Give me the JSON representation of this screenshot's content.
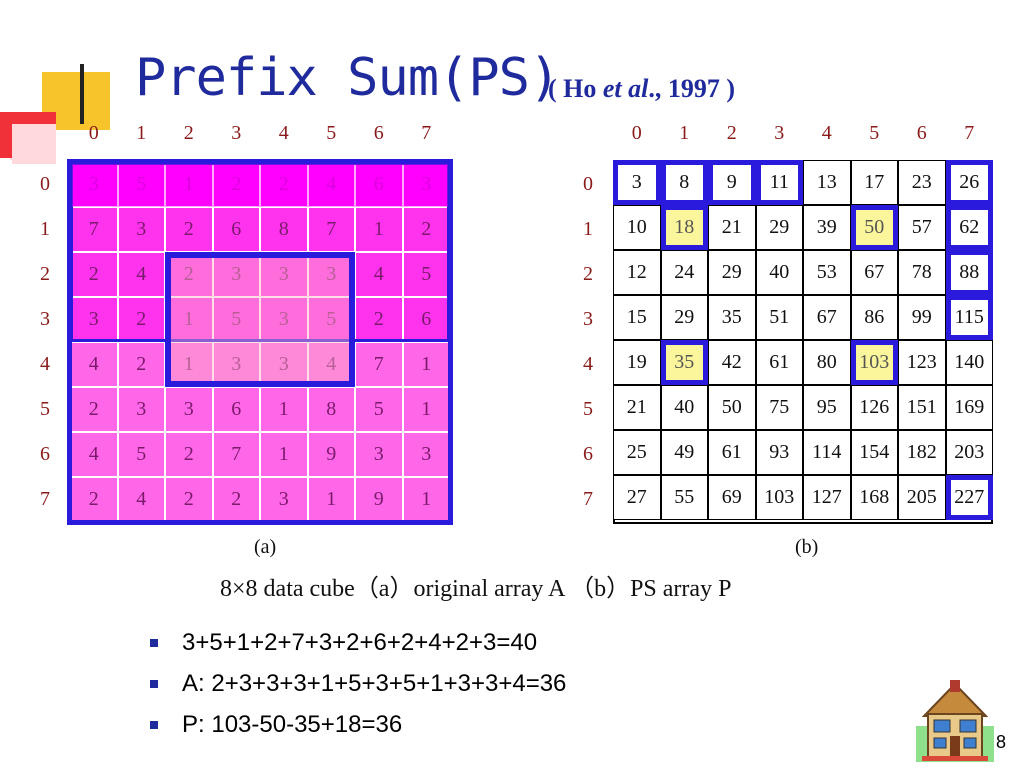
{
  "title": {
    "main": "Prefix Sum(PS)",
    "ref_pre": "( Ho ",
    "ref_italic": "et al",
    "ref_post": "., 1997 )"
  },
  "axis": [
    "0",
    "1",
    "2",
    "3",
    "4",
    "5",
    "6",
    "7"
  ],
  "array_a": [
    [
      "3",
      "5",
      "1",
      "2",
      "2",
      "4",
      "6",
      "3"
    ],
    [
      "7",
      "3",
      "2",
      "6",
      "8",
      "7",
      "1",
      "2"
    ],
    [
      "2",
      "4",
      "2",
      "3",
      "3",
      "3",
      "4",
      "5"
    ],
    [
      "3",
      "2",
      "1",
      "5",
      "3",
      "5",
      "2",
      "6"
    ],
    [
      "4",
      "2",
      "1",
      "3",
      "3",
      "4",
      "7",
      "1"
    ],
    [
      "2",
      "3",
      "3",
      "6",
      "1",
      "8",
      "5",
      "1"
    ],
    [
      "4",
      "5",
      "2",
      "7",
      "1",
      "9",
      "3",
      "3"
    ],
    [
      "2",
      "4",
      "2",
      "2",
      "3",
      "1",
      "9",
      "1"
    ]
  ],
  "array_p": [
    [
      "3",
      "8",
      "9",
      "11",
      "13",
      "17",
      "23",
      "26"
    ],
    [
      "10",
      "18",
      "21",
      "29",
      "39",
      "50",
      "57",
      "62"
    ],
    [
      "12",
      "24",
      "29",
      "40",
      "53",
      "67",
      "78",
      "88"
    ],
    [
      "15",
      "29",
      "35",
      "51",
      "67",
      "86",
      "99",
      "115"
    ],
    [
      "19",
      "35",
      "42",
      "61",
      "80",
      "103",
      "123",
      "140"
    ],
    [
      "21",
      "40",
      "50",
      "75",
      "95",
      "126",
      "151",
      "169"
    ],
    [
      "25",
      "49",
      "61",
      "93",
      "114",
      "154",
      "182",
      "203"
    ],
    [
      "27",
      "55",
      "69",
      "103",
      "127",
      "168",
      "205",
      "227"
    ]
  ],
  "highlight_p": [
    "1,1",
    "1,5",
    "4,1",
    "4,5"
  ],
  "boxed_p": [
    "0,0",
    "0,1",
    "0,2",
    "0,3",
    "0,7",
    "1,7",
    "2,7",
    "3,7",
    "7,7",
    "1,1",
    "1,5",
    "4,1",
    "4,5"
  ],
  "colors": {
    "accent": "#2a1bdc",
    "dark_magenta": "#ff00ff",
    "mid_magenta": "#ff33ee",
    "light_magenta": "#ff66e8",
    "highlight": "#fbf69b",
    "title": "#1f2a9c"
  },
  "subcaption_a": "(a)",
  "subcaption_b": "(b)",
  "caption": "8×8 data cube（a）original array A （b）PS array P",
  "bullets": [
    "3+5+1+2+7+3+2+6+2+4+2+3=40",
    "A: 2+3+3+3+1+5+3+5+1+3+3+4=36",
    "P: 103-50-35+18=36"
  ],
  "icons": {
    "home": "house-icon"
  },
  "page_number": "8"
}
